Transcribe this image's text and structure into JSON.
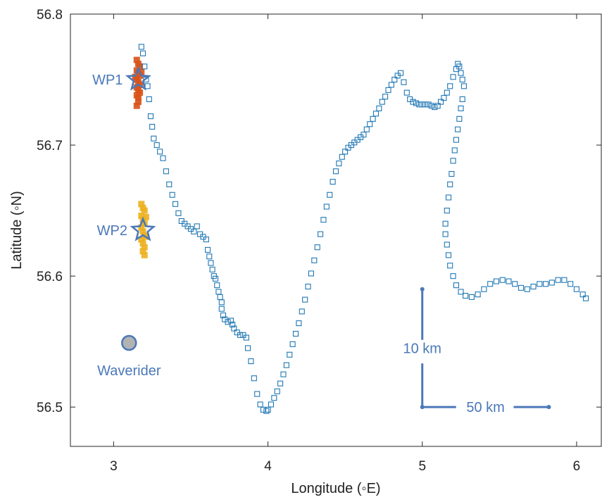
{
  "chart_data": {
    "type": "scatter",
    "title": "",
    "xlabel": "Longitude (◦E)",
    "ylabel": "Latitude (◦N)",
    "xlim": [
      2.72,
      6.16
    ],
    "ylim": [
      56.47,
      56.8
    ],
    "xticks": [
      "3",
      "4",
      "5",
      "6"
    ],
    "yticks": [
      "56.5",
      "56.6",
      "56.7",
      "56.8"
    ],
    "grid": false,
    "colors": {
      "track": "#1f77b4",
      "wp1_cluster": "#d95319",
      "wp2_cluster": "#edb120",
      "annotation": "#4a78b8",
      "waverider_fill": "#b3b3b3"
    },
    "series": [
      {
        "marker": "open-square",
        "color": "#1f77b4",
        "points": [
          [
            3.18,
            56.775
          ],
          [
            3.19,
            56.77
          ],
          [
            3.2,
            56.76
          ],
          [
            3.21,
            56.75
          ],
          [
            3.22,
            56.745
          ],
          [
            3.23,
            56.735
          ],
          [
            3.24,
            56.722
          ],
          [
            3.25,
            56.714
          ],
          [
            3.26,
            56.705
          ],
          [
            3.28,
            56.7
          ],
          [
            3.3,
            56.695
          ],
          [
            3.32,
            56.69
          ],
          [
            3.34,
            56.68
          ],
          [
            3.36,
            56.67
          ],
          [
            3.38,
            56.662
          ],
          [
            3.4,
            56.655
          ],
          [
            3.42,
            56.648
          ],
          [
            3.44,
            56.642
          ],
          [
            3.46,
            56.64
          ],
          [
            3.48,
            56.638
          ],
          [
            3.5,
            56.636
          ],
          [
            3.52,
            56.634
          ],
          [
            3.54,
            56.638
          ],
          [
            3.56,
            56.632
          ],
          [
            3.58,
            56.63
          ],
          [
            3.6,
            56.628
          ],
          [
            3.61,
            56.62
          ],
          [
            3.62,
            56.615
          ],
          [
            3.63,
            56.61
          ],
          [
            3.64,
            56.605
          ],
          [
            3.65,
            56.6
          ],
          [
            3.66,
            56.598
          ],
          [
            3.67,
            56.593
          ],
          [
            3.68,
            56.588
          ],
          [
            3.69,
            56.584
          ],
          [
            3.7,
            56.58
          ],
          [
            3.7,
            56.575
          ],
          [
            3.71,
            56.57
          ],
          [
            3.72,
            56.567
          ],
          [
            3.74,
            56.565
          ],
          [
            3.76,
            56.566
          ],
          [
            3.77,
            56.563
          ],
          [
            3.78,
            56.56
          ],
          [
            3.8,
            56.557
          ],
          [
            3.82,
            56.555
          ],
          [
            3.84,
            56.555
          ],
          [
            3.86,
            56.553
          ],
          [
            3.87,
            56.545
          ],
          [
            3.89,
            56.535
          ],
          [
            3.91,
            56.522
          ],
          [
            3.93,
            56.51
          ],
          [
            3.95,
            56.502
          ],
          [
            3.97,
            56.498
          ],
          [
            3.99,
            56.497
          ],
          [
            4.0,
            56.498
          ],
          [
            4.02,
            56.502
          ],
          [
            4.04,
            56.507
          ],
          [
            4.06,
            56.512
          ],
          [
            4.08,
            56.518
          ],
          [
            4.1,
            56.525
          ],
          [
            4.12,
            56.532
          ],
          [
            4.14,
            56.54
          ],
          [
            4.16,
            56.548
          ],
          [
            4.18,
            56.556
          ],
          [
            4.2,
            56.564
          ],
          [
            4.22,
            56.573
          ],
          [
            4.24,
            56.582
          ],
          [
            4.26,
            56.592
          ],
          [
            4.28,
            56.602
          ],
          [
            4.3,
            56.612
          ],
          [
            4.32,
            56.622
          ],
          [
            4.34,
            56.632
          ],
          [
            4.36,
            56.643
          ],
          [
            4.38,
            56.653
          ],
          [
            4.4,
            56.662
          ],
          [
            4.42,
            56.672
          ],
          [
            4.44,
            56.68
          ],
          [
            4.46,
            56.686
          ],
          [
            4.48,
            56.691
          ],
          [
            4.5,
            56.695
          ],
          [
            4.52,
            56.698
          ],
          [
            4.54,
            56.7
          ],
          [
            4.56,
            56.702
          ],
          [
            4.58,
            56.704
          ],
          [
            4.6,
            56.706
          ],
          [
            4.62,
            56.708
          ],
          [
            4.64,
            56.712
          ],
          [
            4.66,
            56.716
          ],
          [
            4.68,
            56.72
          ],
          [
            4.7,
            56.724
          ],
          [
            4.72,
            56.728
          ],
          [
            4.74,
            56.733
          ],
          [
            4.76,
            56.737
          ],
          [
            4.78,
            56.742
          ],
          [
            4.8,
            56.746
          ],
          [
            4.82,
            56.75
          ],
          [
            4.84,
            56.753
          ],
          [
            4.86,
            56.755
          ],
          [
            4.88,
            56.748
          ],
          [
            4.9,
            56.74
          ],
          [
            4.92,
            56.735
          ],
          [
            4.94,
            56.733
          ],
          [
            4.96,
            56.732
          ],
          [
            4.98,
            56.731
          ],
          [
            5.0,
            56.731
          ],
          [
            5.02,
            56.731
          ],
          [
            5.04,
            56.731
          ],
          [
            5.06,
            56.73
          ],
          [
            5.08,
            56.729
          ],
          [
            5.1,
            56.73
          ],
          [
            5.12,
            56.733
          ],
          [
            5.14,
            56.736
          ],
          [
            5.16,
            56.74
          ],
          [
            5.18,
            56.745
          ],
          [
            5.2,
            56.752
          ],
          [
            5.22,
            56.758
          ],
          [
            5.23,
            56.762
          ],
          [
            5.24,
            56.76
          ],
          [
            5.25,
            56.755
          ],
          [
            5.26,
            56.75
          ],
          [
            5.27,
            56.745
          ],
          [
            5.26,
            56.735
          ],
          [
            5.25,
            56.728
          ],
          [
            5.24,
            56.72
          ],
          [
            5.23,
            56.712
          ],
          [
            5.22,
            56.704
          ],
          [
            5.21,
            56.696
          ],
          [
            5.2,
            56.688
          ],
          [
            5.19,
            56.678
          ],
          [
            5.18,
            56.67
          ],
          [
            5.17,
            56.66
          ],
          [
            5.16,
            56.65
          ],
          [
            5.15,
            56.64
          ],
          [
            5.15,
            56.632
          ],
          [
            5.16,
            56.624
          ],
          [
            5.17,
            56.616
          ],
          [
            5.18,
            56.608
          ],
          [
            5.2,
            56.6
          ],
          [
            5.22,
            56.593
          ],
          [
            5.25,
            56.588
          ],
          [
            5.28,
            56.585
          ],
          [
            5.32,
            56.584
          ],
          [
            5.36,
            56.586
          ],
          [
            5.4,
            56.59
          ],
          [
            5.44,
            56.594
          ],
          [
            5.48,
            56.596
          ],
          [
            5.52,
            56.597
          ],
          [
            5.56,
            56.596
          ],
          [
            5.6,
            56.594
          ],
          [
            5.64,
            56.591
          ],
          [
            5.68,
            56.59
          ],
          [
            5.72,
            56.592
          ],
          [
            5.76,
            56.594
          ],
          [
            5.8,
            56.594
          ],
          [
            5.84,
            56.595
          ],
          [
            5.88,
            56.597
          ],
          [
            5.92,
            56.597
          ],
          [
            5.96,
            56.594
          ],
          [
            6.0,
            56.59
          ],
          [
            6.04,
            56.586
          ],
          [
            6.06,
            56.583
          ]
        ]
      },
      {
        "marker": "filled-cluster",
        "color": "#d95319",
        "points": [
          [
            3.15,
            56.765
          ],
          [
            3.16,
            56.762
          ],
          [
            3.17,
            56.76
          ],
          [
            3.15,
            56.757
          ],
          [
            3.16,
            56.755
          ],
          [
            3.17,
            56.753
          ],
          [
            3.15,
            56.75
          ],
          [
            3.16,
            56.748
          ],
          [
            3.17,
            56.746
          ],
          [
            3.15,
            56.744
          ],
          [
            3.16,
            56.742
          ],
          [
            3.17,
            56.74
          ],
          [
            3.15,
            56.738
          ],
          [
            3.16,
            56.736
          ],
          [
            3.14,
            56.752
          ],
          [
            3.18,
            56.756
          ],
          [
            3.16,
            56.733
          ],
          [
            3.15,
            56.73
          ]
        ]
      },
      {
        "marker": "filled-cluster",
        "color": "#edb120",
        "points": [
          [
            3.18,
            56.655
          ],
          [
            3.19,
            56.652
          ],
          [
            3.2,
            56.65
          ],
          [
            3.18,
            56.646
          ],
          [
            3.19,
            56.643
          ],
          [
            3.2,
            56.64
          ],
          [
            3.18,
            56.637
          ],
          [
            3.19,
            56.634
          ],
          [
            3.2,
            56.631
          ],
          [
            3.18,
            56.628
          ],
          [
            3.19,
            56.625
          ],
          [
            3.2,
            56.622
          ],
          [
            3.19,
            56.619
          ],
          [
            3.2,
            56.616
          ],
          [
            3.21,
            56.645
          ],
          [
            3.21,
            56.63
          ]
        ]
      }
    ],
    "annotations": {
      "wp1": {
        "label": "WP1",
        "lon": 3.16,
        "lat": 56.75
      },
      "wp2": {
        "label": "WP2",
        "lon": 3.19,
        "lat": 56.635
      },
      "waverider": {
        "label": "Waverider",
        "lon": 3.1,
        "lat": 56.549
      },
      "scale_vertical": {
        "label": "10 km",
        "lon": 5.0,
        "lat_from": 56.5,
        "lat_to": 56.59
      },
      "scale_horizontal": {
        "label": "50 km",
        "lon_from": 5.0,
        "lon_to": 5.82,
        "lat": 56.5
      }
    }
  }
}
